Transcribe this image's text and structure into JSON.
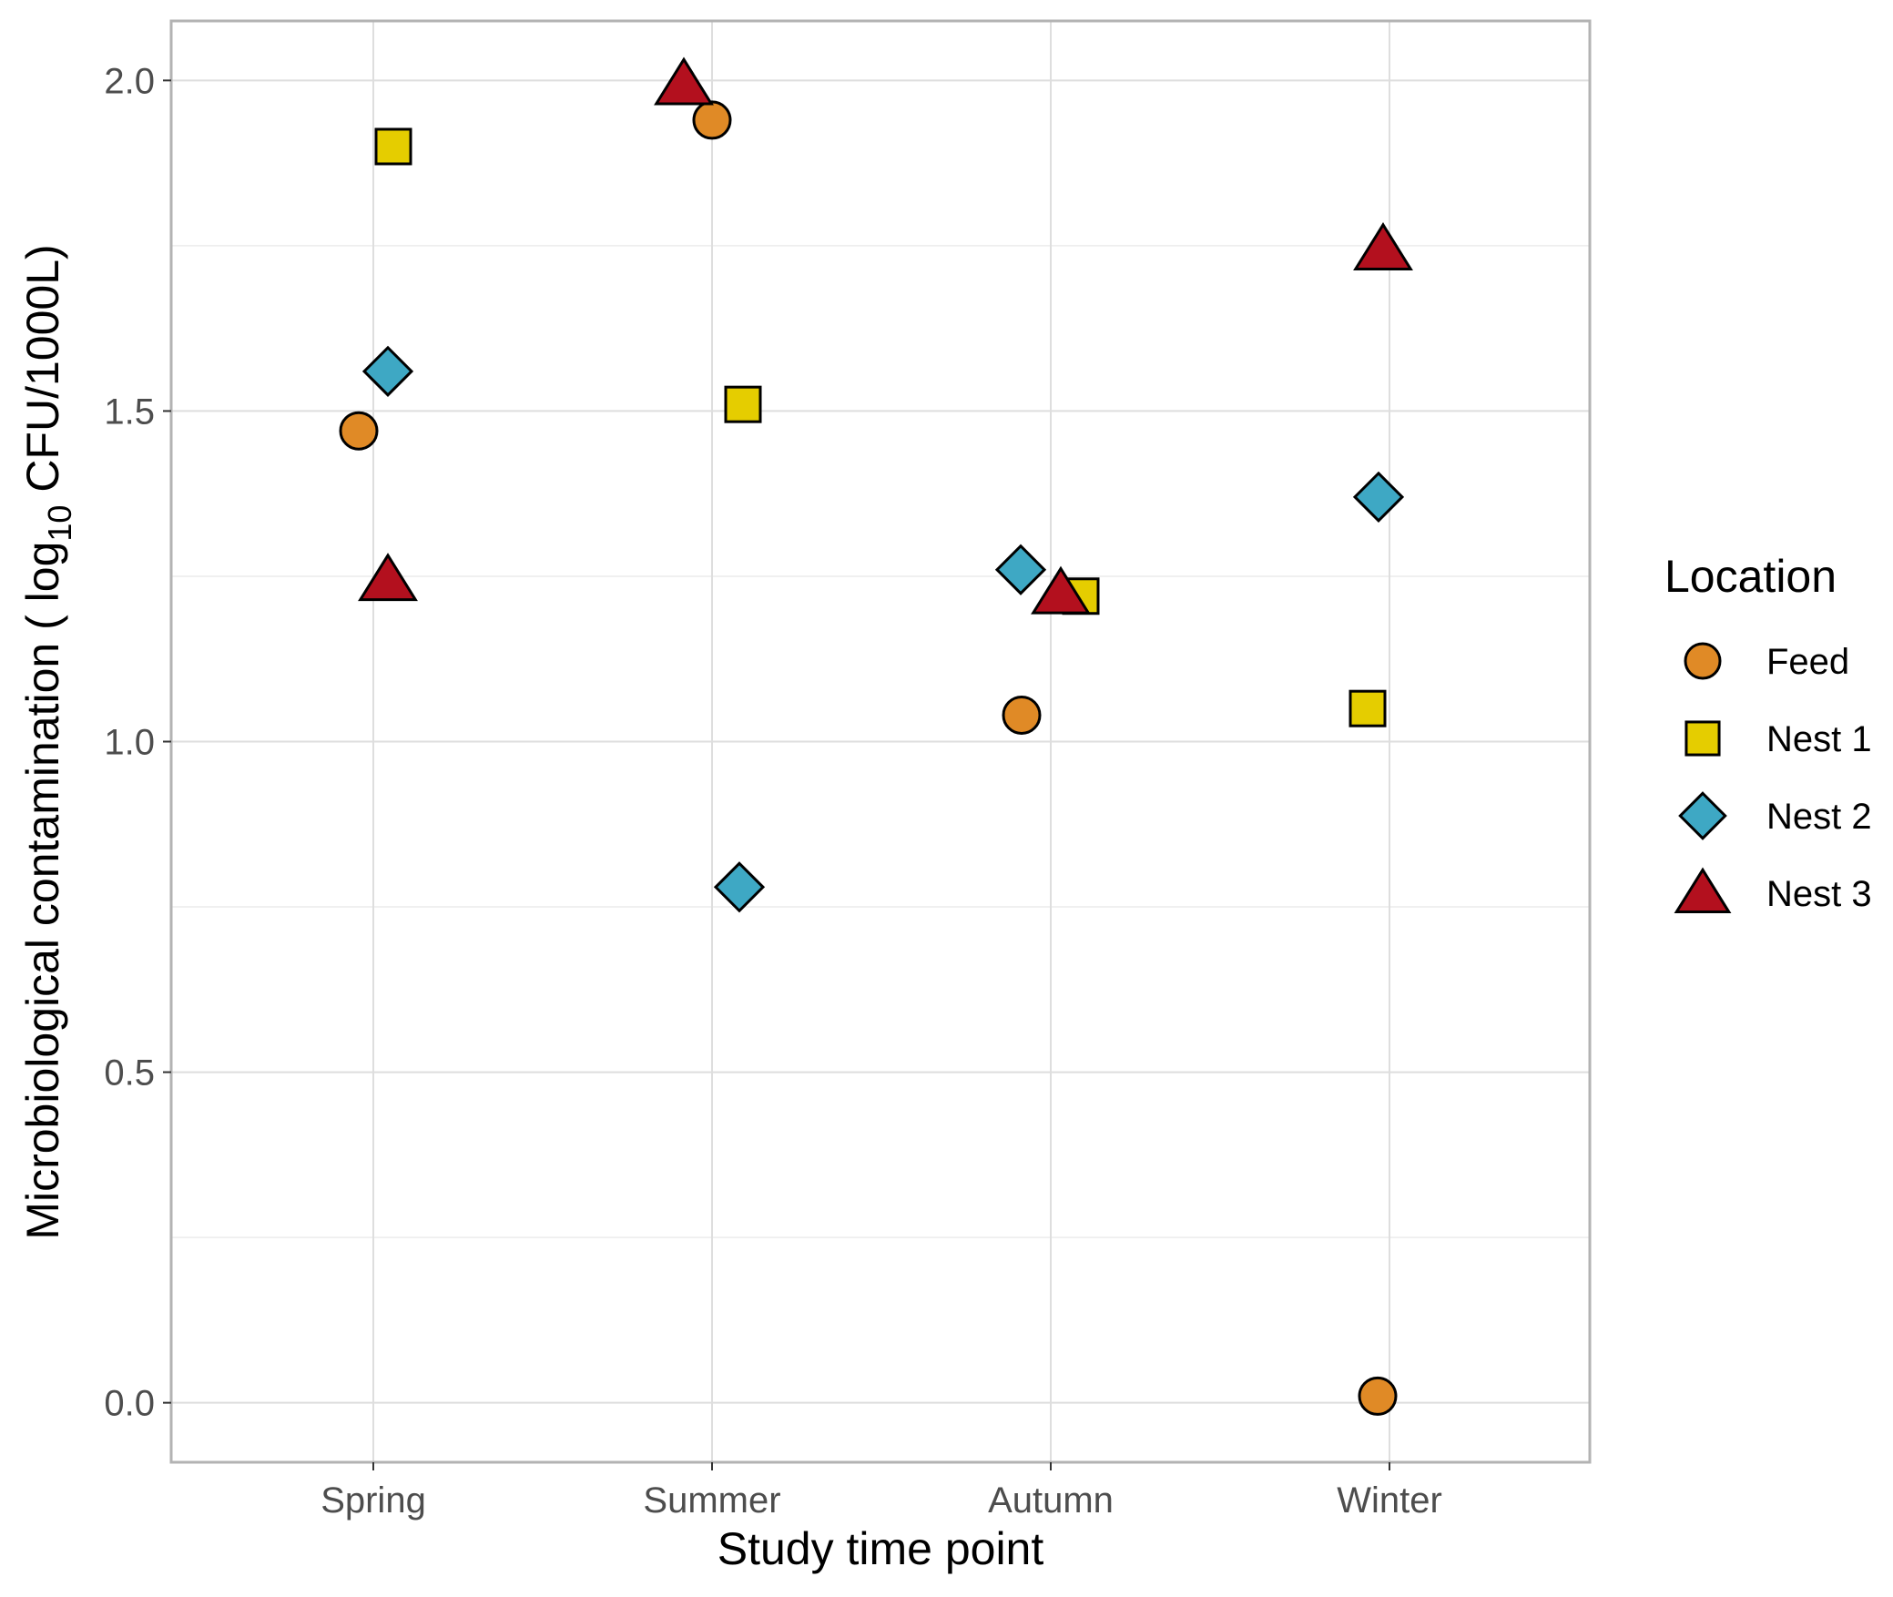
{
  "chart_data": {
    "type": "scatter",
    "title": "",
    "xlabel": "Study time point",
    "ylabel": {
      "prefix": "Microbiological contamination ( log",
      "subscript": "10",
      "suffix": "  CFU/1000L)"
    },
    "categories": [
      "Spring",
      "Summer",
      "Autumn",
      "Winter"
    ],
    "ylim": [
      -0.09,
      2.09
    ],
    "yticks": [
      0.0,
      0.5,
      1.0,
      1.5,
      2.0
    ],
    "ytick_labels": [
      "0.0",
      "0.5",
      "1.0",
      "1.5",
      "2.0"
    ],
    "grid": true,
    "legend": {
      "title": "Location",
      "placement": "right"
    },
    "series": [
      {
        "name": "Feed",
        "shape": "circle",
        "color": "#E08A26",
        "values": [
          1.47,
          1.94,
          1.04,
          0.01
        ]
      },
      {
        "name": "Nest 1",
        "shape": "square",
        "color": "#E5CD00",
        "values": [
          1.9,
          1.51,
          1.22,
          1.05
        ]
      },
      {
        "name": "Nest 2",
        "shape": "diamond",
        "color": "#3EA8C4",
        "values": [
          1.56,
          0.78,
          1.26,
          1.37
        ]
      },
      {
        "name": "Nest 3",
        "shape": "triangle",
        "color": "#B3101E",
        "values": [
          1.25,
          2.0,
          1.23,
          1.75
        ]
      }
    ]
  }
}
